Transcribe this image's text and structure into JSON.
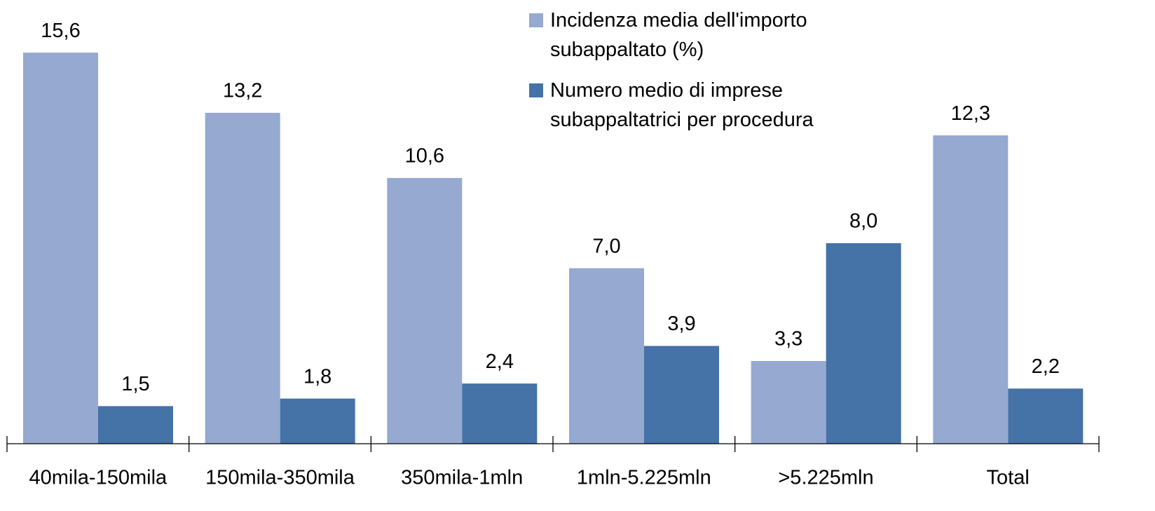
{
  "chart_data": {
    "type": "bar",
    "categories": [
      "40mila-150mila",
      "150mila-350mila",
      "350mila-1mln",
      "1mln-5.225mln",
      ">5.225mln",
      "Total"
    ],
    "series": [
      {
        "name": "Incidenza media dell'importo subappaltato (%)",
        "color": "#95a9d1",
        "values": [
          15.6,
          13.2,
          10.6,
          7.0,
          3.3,
          12.3
        ],
        "value_labels": [
          "15,6",
          "13,2",
          "10,6",
          "7,0",
          "3,3",
          "12,3"
        ]
      },
      {
        "name": "Numero medio di imprese subappaltatrici per procedura",
        "color": "#4572a7",
        "values": [
          1.5,
          1.8,
          2.4,
          3.9,
          8.0,
          2.2
        ],
        "value_labels": [
          "1,5",
          "1,8",
          "2,4",
          "3,9",
          "8,0",
          "2,2"
        ]
      }
    ],
    "ylim": [
      0,
      17.7
    ]
  }
}
